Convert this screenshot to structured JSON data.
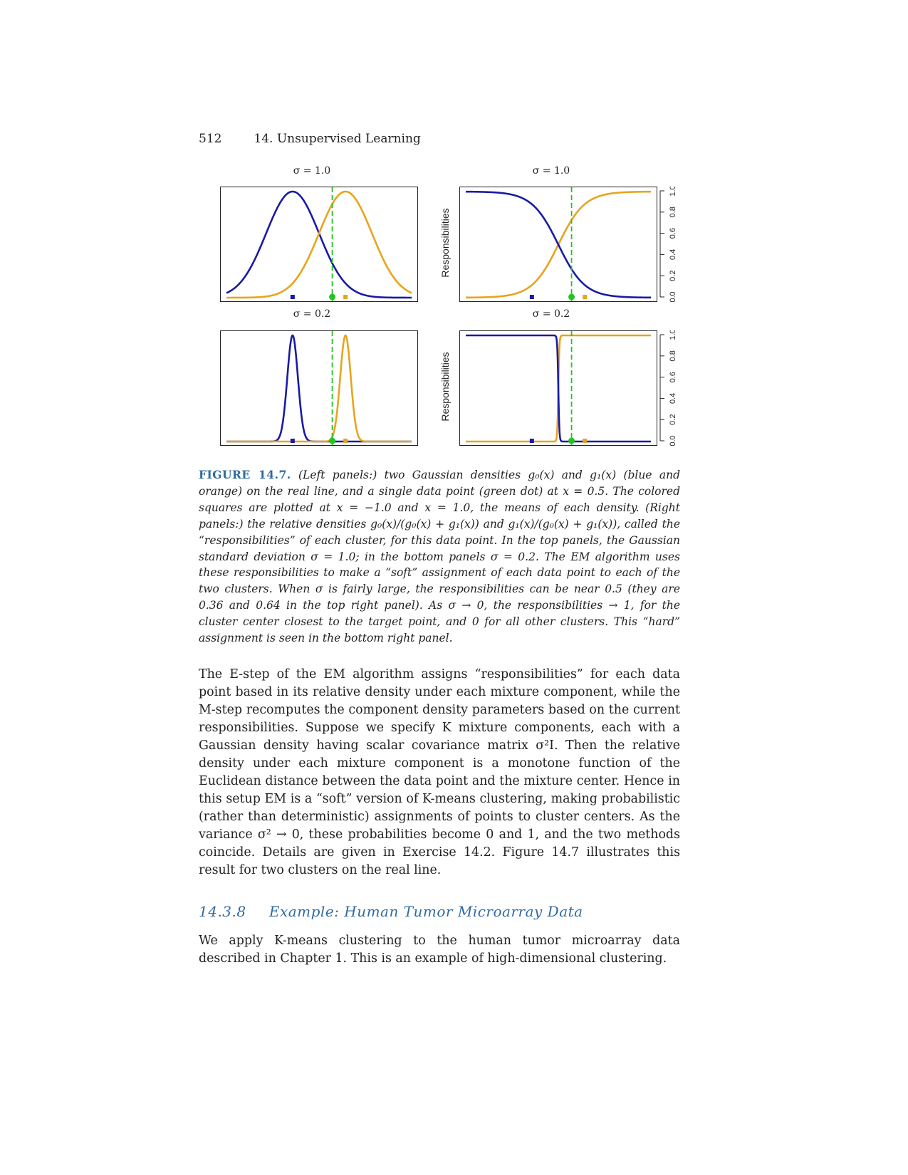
{
  "header": {
    "page_number": "512",
    "chapter": "14.  Unsupervised Learning"
  },
  "figure": {
    "panel_titles": [
      "σ = 1.0",
      "σ = 1.0",
      "σ = 0.2",
      "σ = 0.2"
    ],
    "ylabel": "Responsibilities",
    "yticks": [
      "0.0",
      "0.2",
      "0.4",
      "0.6",
      "0.8",
      "1.0"
    ]
  },
  "chart_data": [
    {
      "type": "line",
      "title": "σ = 1.0",
      "panel": "left density",
      "series": [
        {
          "name": "g0(x)",
          "mean": -1.0,
          "sd": 1.0
        },
        {
          "name": "g1(x)",
          "mean": 1.0,
          "sd": 1.0
        }
      ],
      "data_point": 0.5,
      "squares": [
        -1.0,
        1.0
      ],
      "xlim": [
        -3.5,
        3.5
      ]
    },
    {
      "type": "line",
      "title": "σ = 1.0",
      "panel": "right responsibilities",
      "series": [
        {
          "name": "g0(x)/(g0(x)+g1(x))"
        },
        {
          "name": "g1(x)/(g0(x)+g1(x))"
        }
      ],
      "data_point": 0.5,
      "responsibilities_at_point": [
        0.36,
        0.64
      ],
      "ylim": [
        0,
        1
      ],
      "xlim": [
        -3.5,
        3.5
      ]
    },
    {
      "type": "line",
      "title": "σ = 0.2",
      "panel": "left density",
      "series": [
        {
          "name": "g0(x)",
          "mean": -1.0,
          "sd": 0.2
        },
        {
          "name": "g1(x)",
          "mean": 1.0,
          "sd": 0.2
        }
      ],
      "data_point": 0.5,
      "squares": [
        -1.0,
        1.0
      ],
      "xlim": [
        -3.5,
        3.5
      ]
    },
    {
      "type": "line",
      "title": "σ = 0.2",
      "panel": "right responsibilities",
      "series": [
        {
          "name": "g0(x)/(g0(x)+g1(x))"
        },
        {
          "name": "g1(x)/(g0(x)+g1(x))"
        }
      ],
      "data_point": 0.5,
      "ylim": [
        0,
        1
      ],
      "xlim": [
        -3.5,
        3.5
      ]
    }
  ],
  "colors": {
    "blue": "#1a1aa6",
    "orange": "#e8a41c",
    "green": "#22c422"
  },
  "caption": {
    "label": "FIGURE 14.7.",
    "text": "(Left panels:) two Gaussian densities g₀(x) and g₁(x) (blue and orange) on the real line, and a single data point (green dot) at x = 0.5. The colored squares are plotted at x = −1.0 and x = 1.0, the means of each density. (Right panels:) the relative densities g₀(x)/(g₀(x) + g₁(x)) and g₁(x)/(g₀(x) + g₁(x)), called the “responsibilities” of each cluster, for this data point. In the top panels, the Gaussian standard deviation σ = 1.0; in the bottom panels σ = 0.2. The EM algorithm uses these responsibilities to make a “soft” assignment of each data point to each of the two clusters. When σ is fairly large, the responsibilities can be near 0.5 (they are 0.36 and 0.64 in the top right panel). As σ → 0, the responsibilities → 1, for the cluster center closest to the target point, and 0 for all other clusters. This “hard” assignment is seen in the bottom right panel."
  },
  "paragraph1": "The E-step of the EM algorithm assigns “responsibilities” for each data point based in its relative density under each mixture component, while the M-step recomputes the component density parameters based on the current responsibilities. Suppose we specify K mixture components, each with a Gaussian density having scalar covariance matrix σ²I. Then the relative density under each mixture component is a monotone function of the Euclidean distance between the data point and the mixture center. Hence in this setup EM is a “soft” version of K-means clustering, making probabilistic (rather than deterministic) assignments of points to cluster centers. As the variance σ² → 0, these probabilities become 0 and 1, and the two methods coincide. Details are given in Exercise 14.2. Figure 14.7 illustrates this result for two clusters on the real line.",
  "section": {
    "number": "14.3.8",
    "title": "Example: Human Tumor Microarray Data"
  },
  "paragraph2": "We apply K-means clustering to the human tumor microarray data described in Chapter 1. This is an example of high-dimensional clustering."
}
